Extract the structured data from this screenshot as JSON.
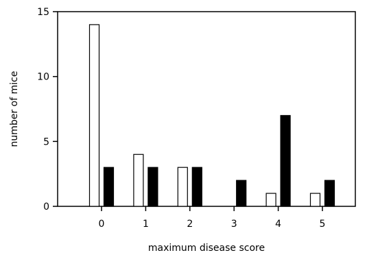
{
  "chart_data": {
    "type": "bar",
    "title": "",
    "xlabel": "maximum disease score",
    "ylabel": "number of mice",
    "categories": [
      "0",
      "1",
      "2",
      "3",
      "4",
      "5"
    ],
    "series": [
      {
        "values": [
          14,
          4,
          3,
          0,
          1,
          1
        ],
        "color": "#ffffff"
      },
      {
        "values": [
          3,
          3,
          3,
          2,
          7,
          2
        ],
        "color": "#000000"
      }
    ],
    "ylim": [
      0,
      15
    ],
    "yticks": [
      0,
      5,
      10,
      15
    ],
    "grid": false,
    "legend": "none"
  }
}
